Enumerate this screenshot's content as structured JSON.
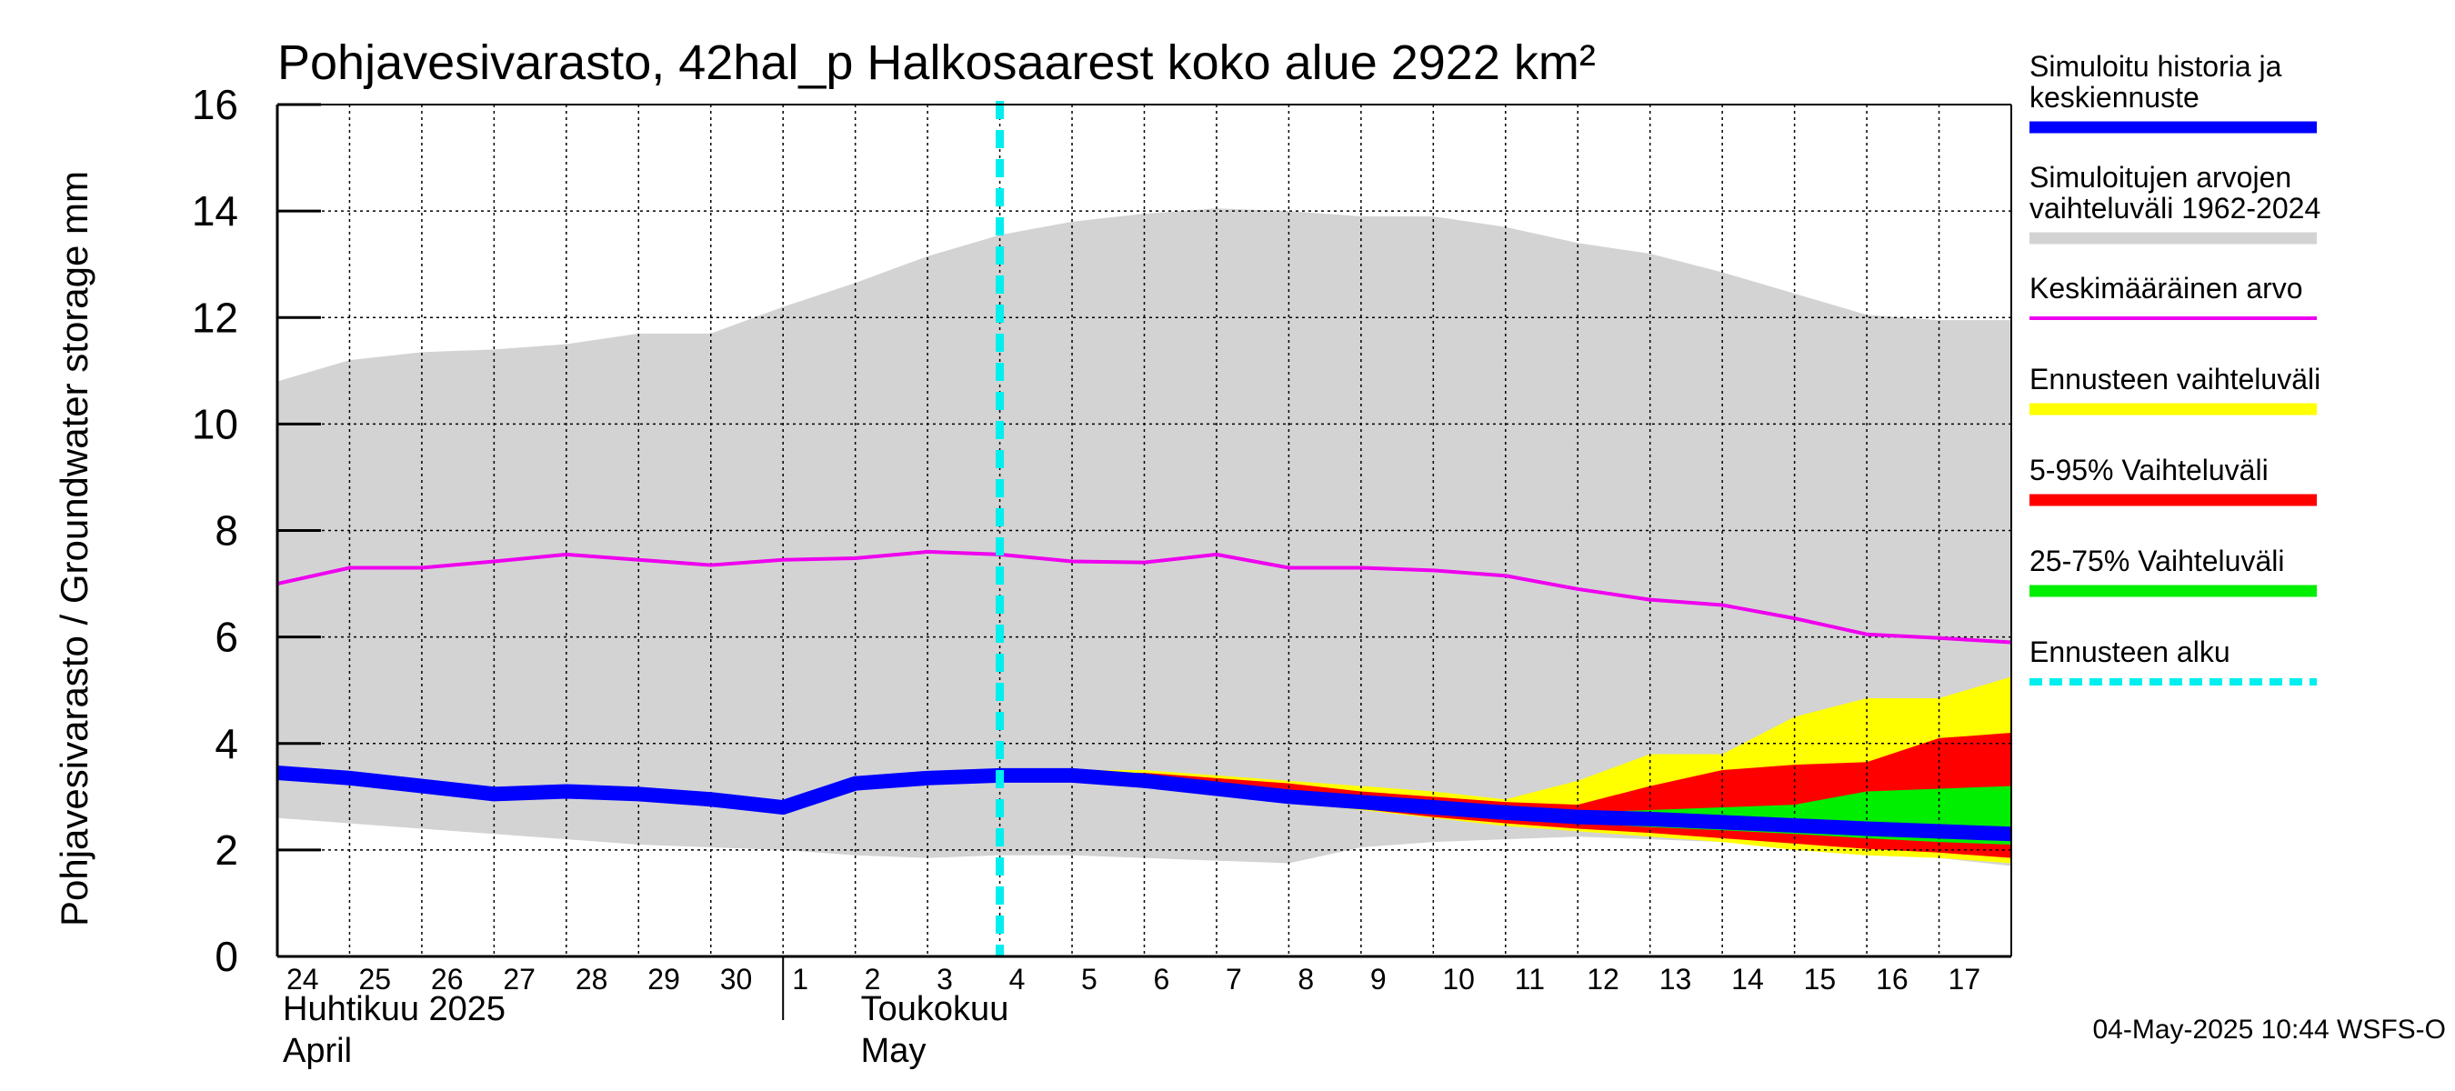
{
  "chart_data": {
    "type": "area",
    "title": "Pohjavesivarasto, 42hal_p Halkosaarest koko alue 2922 km²",
    "ylabel": "Pohjavesivarasto / Groundwater storage   mm",
    "ylim": [
      0,
      16
    ],
    "yticks": [
      0,
      2,
      4,
      6,
      8,
      10,
      12,
      14,
      16
    ],
    "x_day_labels": [
      "24",
      "25",
      "26",
      "27",
      "28",
      "29",
      "30",
      "1",
      "2",
      "3",
      "4",
      "5",
      "6",
      "7",
      "8",
      "9",
      "10",
      "11",
      "12",
      "13",
      "14",
      "15",
      "16",
      "17"
    ],
    "x_range_days": [
      0,
      24
    ],
    "month_labels": [
      {
        "line1": "Huhtikuu  2025",
        "line2": "April",
        "day_index": 0
      },
      {
        "line1": "Toukokuu",
        "line2": "May",
        "day_index": 8
      }
    ],
    "month_separator_day_index": 7,
    "forecast_start_day_index": 10,
    "grid": true,
    "series": [
      {
        "name": "Simuloitujen arvojen vaihteluväli 1962-2024",
        "kind": "band",
        "color": "#d3d3d3",
        "x": [
          0,
          1,
          2,
          3,
          4,
          5,
          6,
          7,
          8,
          9,
          10,
          11,
          12,
          13,
          14,
          15,
          16,
          17,
          18,
          19,
          20,
          21,
          22,
          23,
          24
        ],
        "upper": [
          10.8,
          11.2,
          11.35,
          11.4,
          11.5,
          11.7,
          11.7,
          12.2,
          12.65,
          13.15,
          13.55,
          13.8,
          13.95,
          14.05,
          14.0,
          13.9,
          13.9,
          13.7,
          13.4,
          13.2,
          12.85,
          12.45,
          12.05,
          11.95,
          11.95
        ],
        "lower": [
          2.6,
          2.5,
          2.4,
          2.3,
          2.2,
          2.1,
          2.05,
          2.0,
          1.9,
          1.85,
          1.9,
          1.9,
          1.85,
          1.8,
          1.75,
          2.05,
          2.15,
          2.2,
          2.25,
          2.2,
          2.15,
          2.05,
          1.95,
          1.85,
          1.7
        ]
      },
      {
        "name": "Ennusteen vaihteluväli",
        "kind": "band",
        "color": "#ffff00",
        "x": [
          10,
          11,
          12,
          13,
          14,
          15,
          16,
          17,
          18,
          19,
          20,
          21,
          22,
          23,
          24
        ],
        "upper": [
          3.45,
          3.5,
          3.5,
          3.4,
          3.3,
          3.2,
          3.1,
          2.95,
          3.3,
          3.8,
          3.8,
          4.5,
          4.85,
          4.85,
          5.25
        ],
        "lower": [
          3.4,
          3.35,
          3.25,
          3.05,
          2.9,
          2.75,
          2.6,
          2.45,
          2.35,
          2.25,
          2.15,
          2.0,
          1.9,
          1.85,
          1.75
        ]
      },
      {
        "name": "5-95% Vaihteluväli",
        "kind": "band",
        "color": "#ff0000",
        "x": [
          10,
          11,
          12,
          13,
          14,
          15,
          16,
          17,
          18,
          19,
          20,
          21,
          22,
          23,
          24
        ],
        "upper": [
          3.42,
          3.45,
          3.45,
          3.35,
          3.25,
          3.1,
          3.0,
          2.9,
          2.85,
          3.2,
          3.5,
          3.6,
          3.65,
          4.1,
          4.2
        ],
        "lower": [
          3.4,
          3.35,
          3.25,
          3.07,
          2.92,
          2.77,
          2.62,
          2.5,
          2.4,
          2.32,
          2.22,
          2.12,
          2.02,
          1.95,
          1.85
        ]
      },
      {
        "name": "25-75% Vaihteluväli",
        "kind": "band",
        "color": "#00ee00",
        "x": [
          10,
          11,
          12,
          13,
          14,
          15,
          16,
          17,
          18,
          19,
          20,
          21,
          22,
          23,
          24
        ],
        "upper": [
          3.4,
          3.38,
          3.32,
          3.15,
          3.0,
          2.88,
          2.78,
          2.72,
          2.7,
          2.75,
          2.8,
          2.85,
          3.1,
          3.15,
          3.2
        ],
        "lower": [
          3.4,
          3.36,
          3.28,
          3.1,
          2.95,
          2.8,
          2.68,
          2.58,
          2.5,
          2.43,
          2.37,
          2.3,
          2.22,
          2.15,
          2.1
        ]
      },
      {
        "name": "Keskimääräinen arvo",
        "kind": "line",
        "color": "#ee00ee",
        "x": [
          0,
          1,
          2,
          3,
          4,
          5,
          6,
          7,
          8,
          9,
          10,
          11,
          12,
          13,
          14,
          15,
          16,
          17,
          18,
          19,
          20,
          21,
          22,
          23,
          24
        ],
        "values": [
          7.0,
          7.3,
          7.3,
          7.42,
          7.55,
          7.45,
          7.35,
          7.45,
          7.48,
          7.6,
          7.55,
          7.42,
          7.4,
          7.55,
          7.3,
          7.3,
          7.25,
          7.15,
          6.9,
          6.7,
          6.6,
          6.35,
          6.05,
          5.98,
          5.9
        ]
      },
      {
        "name": "Simuloitu historia ja keskiennuste",
        "kind": "line",
        "color": "#0000ff",
        "x": [
          0,
          1,
          2,
          3,
          4,
          5,
          6,
          7,
          8,
          9,
          10,
          11,
          12,
          13,
          14,
          15,
          16,
          17,
          18,
          19,
          20,
          21,
          22,
          23,
          24
        ],
        "values": [
          3.45,
          3.35,
          3.2,
          3.05,
          3.1,
          3.05,
          2.95,
          2.8,
          3.25,
          3.35,
          3.4,
          3.4,
          3.3,
          3.15,
          3.0,
          2.9,
          2.8,
          2.7,
          2.62,
          2.58,
          2.52,
          2.46,
          2.4,
          2.35,
          2.3
        ]
      }
    ],
    "legend": {
      "placement": "right",
      "items": [
        {
          "label": "Simuloitu historia ja\nkeskiennuste",
          "color": "#0000ff",
          "style": "thick"
        },
        {
          "label": "Simuloitujen arvojen\nvaihteluväli 1962-2024",
          "color": "#d3d3d3",
          "style": "thick"
        },
        {
          "label": "Keskimääräinen arvo",
          "color": "#ee00ee",
          "style": "thin"
        },
        {
          "label": "Ennusteen vaihteluväli",
          "color": "#ffff00",
          "style": "thick"
        },
        {
          "label": "5-95% Vaihteluväli",
          "color": "#ff0000",
          "style": "thick"
        },
        {
          "label": "25-75% Vaihteluväli",
          "color": "#00ee00",
          "style": "thick"
        },
        {
          "label": "Ennusteen alku",
          "color": "#00eeee",
          "style": "dashed"
        }
      ]
    },
    "forecast_line_color": "#00eeee",
    "footer": "04-May-2025 10:44 WSFS-O"
  }
}
